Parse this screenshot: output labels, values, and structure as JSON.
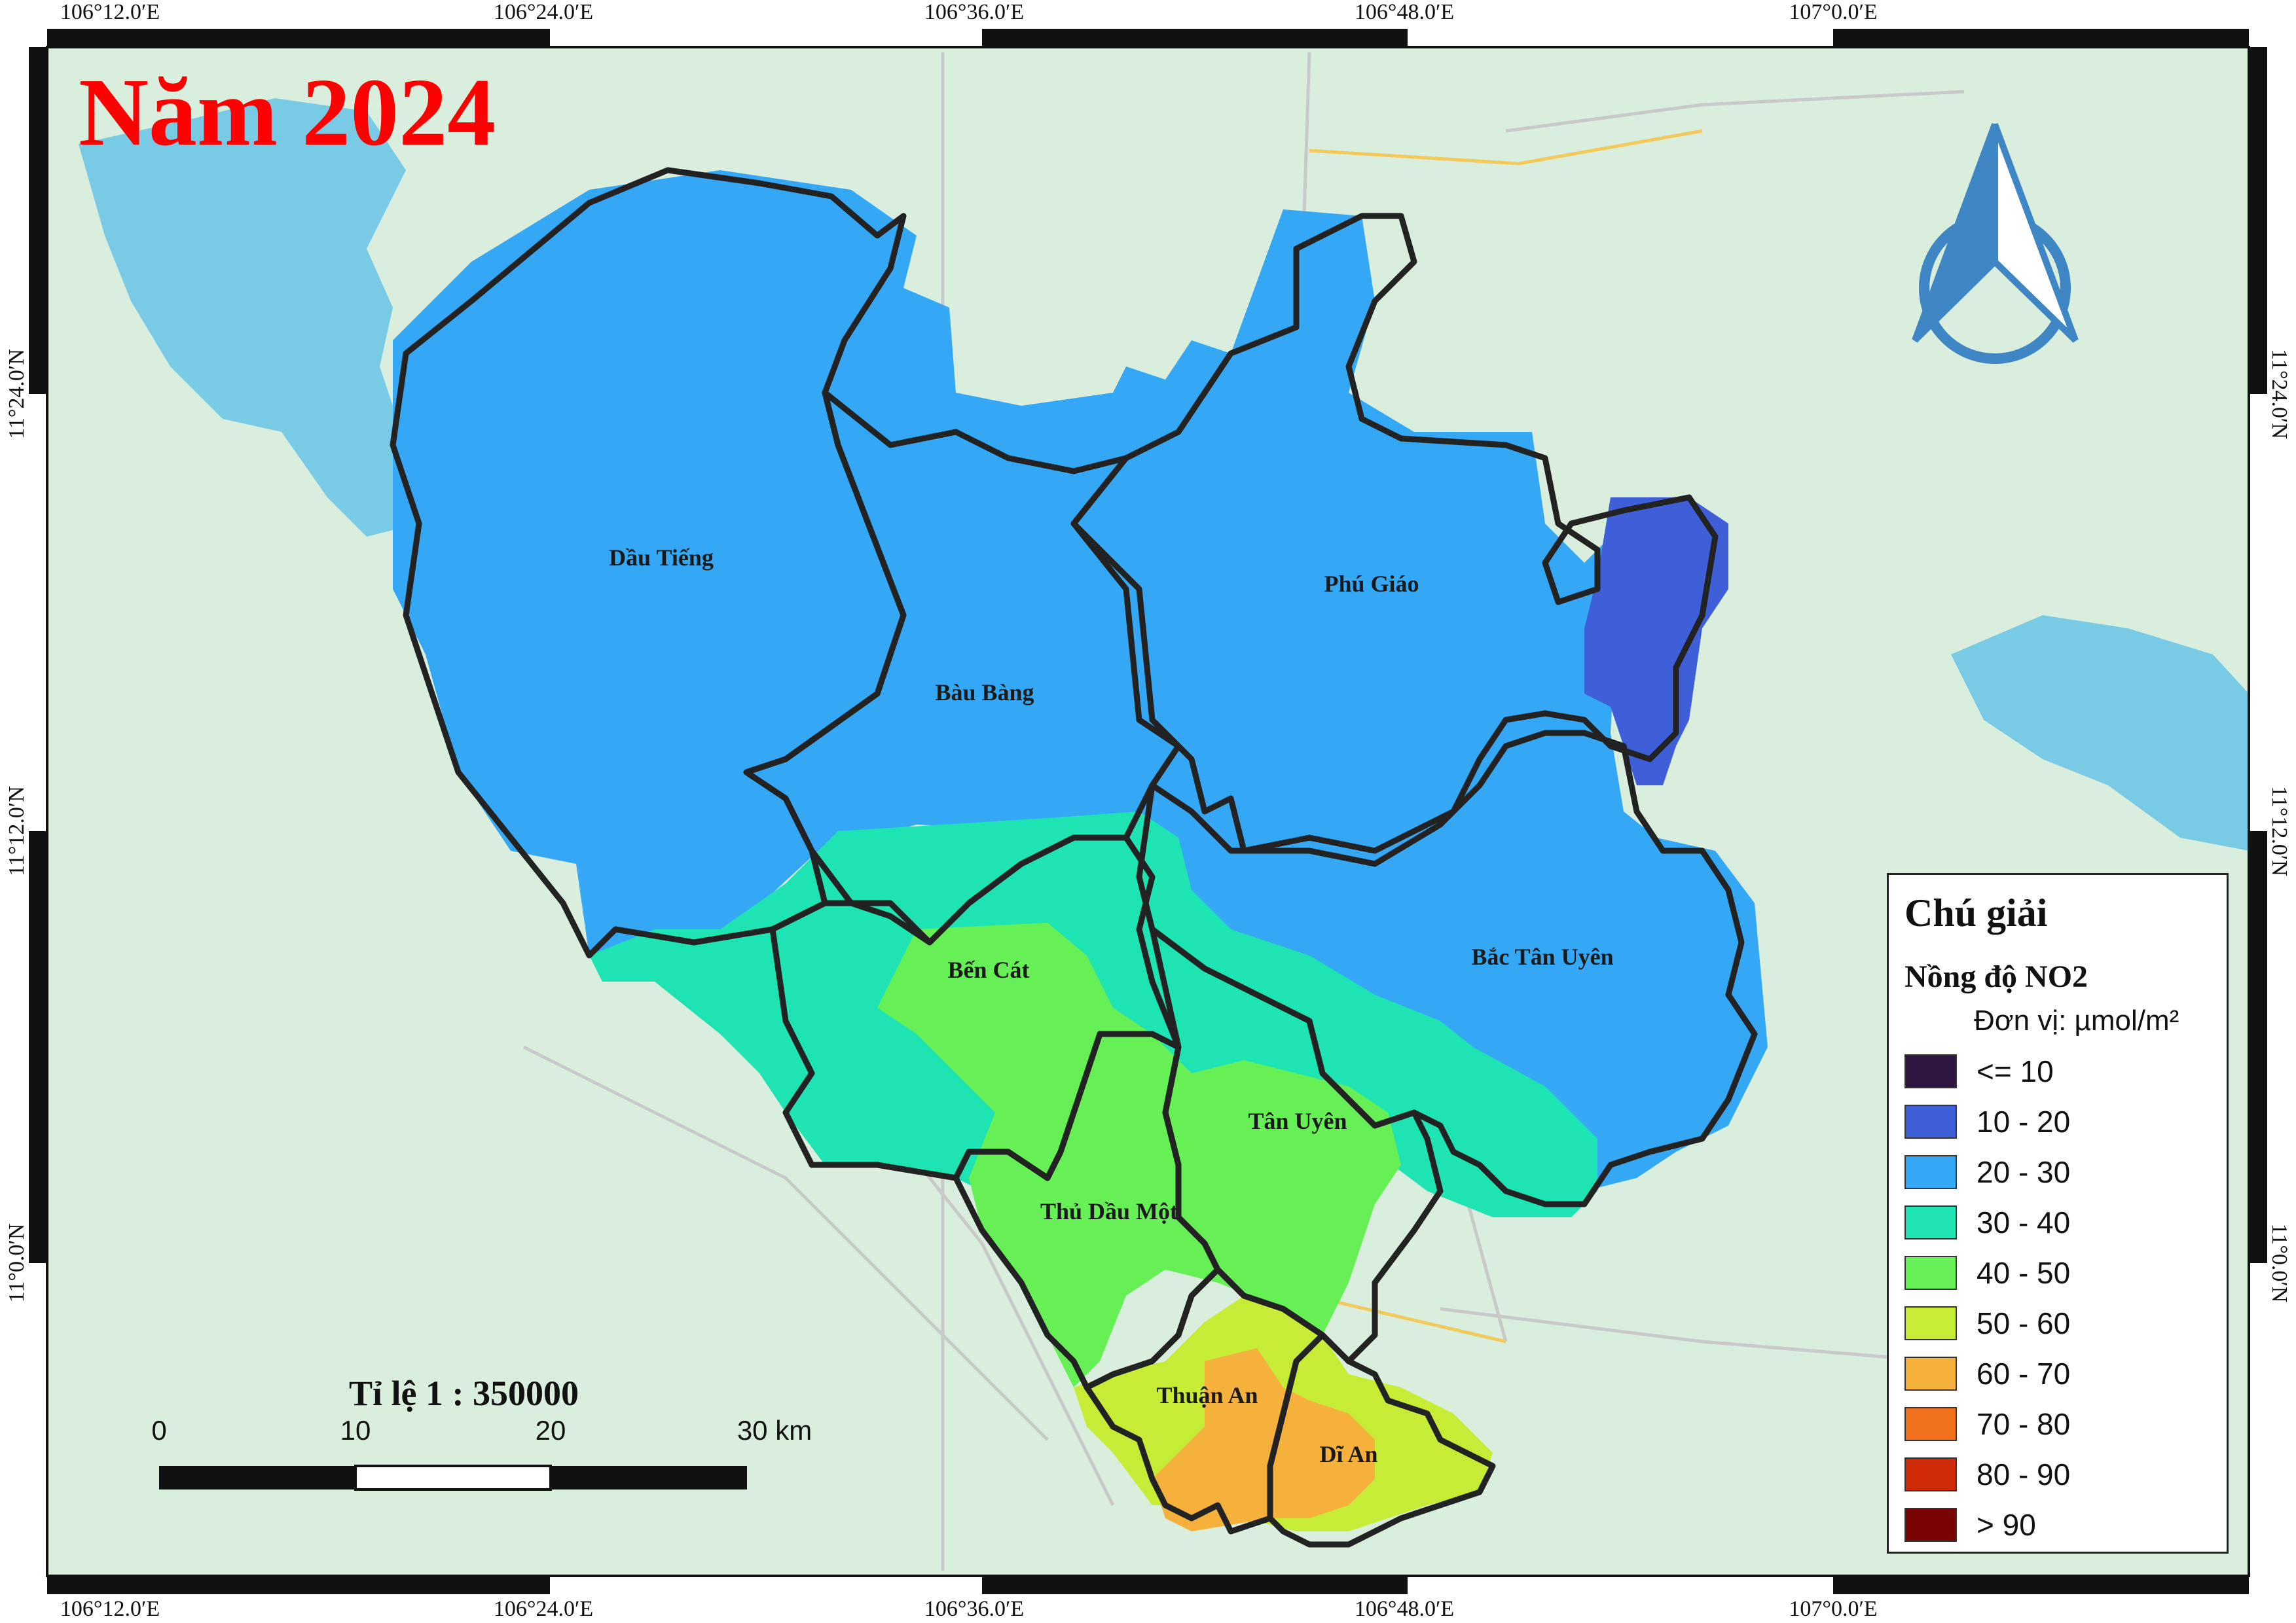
{
  "title": "Năm 2024",
  "scale": {
    "text": "Tỉ lệ 1 : 350000",
    "ticks": [
      "0",
      "10",
      "20",
      "30 km"
    ]
  },
  "coords": {
    "longitudes": [
      "106°12.0′E",
      "106°24.0′E",
      "106°36.0′E",
      "106°48.0′E",
      "107°0.0′E"
    ],
    "latitudes": [
      "11°24.0′N",
      "11°12.0′N",
      "11°0.0′N"
    ]
  },
  "districts": {
    "dau_tieng": "Dầu Tiếng",
    "phu_giao": "Phú Giáo",
    "bau_bang": "Bàu Bàng",
    "bac_tan_uyen": "Bắc Tân Uyên",
    "ben_cat": "Bến Cát",
    "tan_uyen": "Tân Uyên",
    "thu_dau_mot": "Thủ Dầu Một",
    "thuan_an": "Thuận An",
    "di_an": "Dĩ An"
  },
  "legend": {
    "title": "Chú giải",
    "subtitle": "Nồng độ NO2",
    "unit": "Đơn vị: µmol/m²",
    "classes": [
      {
        "label": "<= 10",
        "color": "#2d1540"
      },
      {
        "label": "10 - 20",
        "color": "#3f5fd8"
      },
      {
        "label": "20 - 30",
        "color": "#35a8f5"
      },
      {
        "label": "30 - 40",
        "color": "#1ee3b2"
      },
      {
        "label": "40 - 50",
        "color": "#66f055"
      },
      {
        "label": "50 - 60",
        "color": "#c6ec35"
      },
      {
        "label": "60 - 70",
        "color": "#f6b13c"
      },
      {
        "label": "70 - 80",
        "color": "#f2711c"
      },
      {
        "label": "80 - 90",
        "color": "#cf2b09"
      },
      {
        "label": "> 90",
        "color": "#7a0403"
      }
    ]
  },
  "colors": {
    "basemap": "#d9eedd",
    "water": "#6ec6e6",
    "boundary": "#222222",
    "title": "#ff0000"
  }
}
